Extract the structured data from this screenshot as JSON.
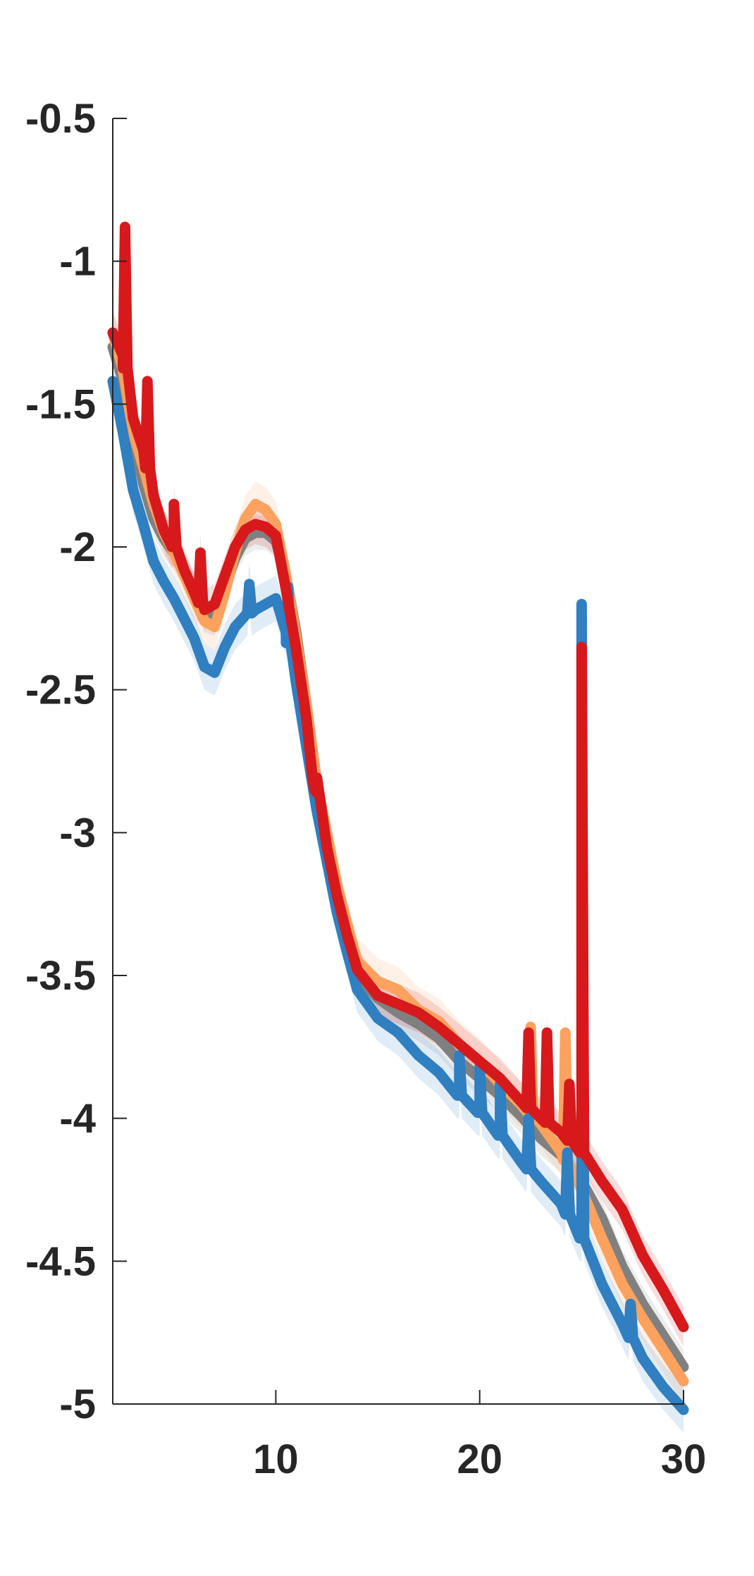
{
  "chart_data": {
    "type": "line",
    "title": "",
    "xlabel": "",
    "ylabel": "",
    "xlim": [
      2,
      30
    ],
    "ylim": [
      -5,
      -0.5
    ],
    "grid": false,
    "legend": "none",
    "x_ticks": [
      10,
      20,
      30
    ],
    "x_tick_labels": [
      "10",
      "20",
      "30"
    ],
    "y_ticks": [
      -0.5,
      -1,
      -1.5,
      -2,
      -2.5,
      -3,
      -3.5,
      -4,
      -4.5,
      -5
    ],
    "y_tick_labels": [
      "-0.5",
      "-1",
      "-1.5",
      "-2",
      "-2.5",
      "-3",
      "-3.5",
      "-4",
      "-4.5",
      "-5"
    ],
    "series": [
      {
        "color": "#808080",
        "band": 0.06,
        "points": [
          [
            2,
            -1.3
          ],
          [
            2.5,
            -1.42
          ],
          [
            3,
            -1.62
          ],
          [
            3.5,
            -1.78
          ],
          [
            4,
            -1.9
          ],
          [
            4.5,
            -1.97
          ],
          [
            5,
            -2.02
          ],
          [
            5.5,
            -2.08
          ],
          [
            6,
            -2.16
          ],
          [
            6.5,
            -2.24
          ],
          [
            7,
            -2.25
          ],
          [
            7.5,
            -2.14
          ],
          [
            8,
            -2.04
          ],
          [
            8.5,
            -1.97
          ],
          [
            9,
            -1.95
          ],
          [
            9.5,
            -1.95
          ],
          [
            10,
            -1.98
          ],
          [
            10.5,
            -2.1
          ],
          [
            11,
            -2.3
          ],
          [
            11.5,
            -2.55
          ],
          [
            12,
            -2.82
          ],
          [
            12.5,
            -3.05
          ],
          [
            13,
            -3.22
          ],
          [
            13.5,
            -3.38
          ],
          [
            14,
            -3.5
          ],
          [
            15,
            -3.58
          ],
          [
            16,
            -3.63
          ],
          [
            17,
            -3.67
          ],
          [
            18,
            -3.72
          ],
          [
            19,
            -3.8
          ],
          [
            20,
            -3.86
          ],
          [
            21,
            -3.92
          ],
          [
            22,
            -3.99
          ],
          [
            23,
            -4.07
          ],
          [
            24,
            -4.13
          ],
          [
            25,
            -4.22
          ],
          [
            26,
            -4.35
          ],
          [
            27,
            -4.52
          ],
          [
            28,
            -4.65
          ],
          [
            29,
            -4.76
          ],
          [
            30,
            -4.87
          ]
        ]
      },
      {
        "color": "#fca15e",
        "band": 0.08,
        "points": [
          [
            2,
            -1.25
          ],
          [
            2.5,
            -1.38
          ],
          [
            3,
            -1.6
          ],
          [
            3.5,
            -1.72
          ],
          [
            4,
            -1.85
          ],
          [
            4.5,
            -1.95
          ],
          [
            5,
            -2.02
          ],
          [
            5.5,
            -2.1
          ],
          [
            6,
            -2.18
          ],
          [
            6.5,
            -2.26
          ],
          [
            7,
            -2.28
          ],
          [
            7.5,
            -2.16
          ],
          [
            8,
            -2.02
          ],
          [
            8.5,
            -1.9
          ],
          [
            9,
            -1.85
          ],
          [
            9.5,
            -1.87
          ],
          [
            10,
            -1.92
          ],
          [
            10.5,
            -2.1
          ],
          [
            11,
            -2.32
          ],
          [
            11.5,
            -2.55
          ],
          [
            12,
            -2.82
          ],
          [
            12.5,
            -3.0
          ],
          [
            13,
            -3.18
          ],
          [
            13.5,
            -3.32
          ],
          [
            14,
            -3.45
          ],
          [
            15,
            -3.52
          ],
          [
            16,
            -3.55
          ],
          [
            17,
            -3.62
          ],
          [
            18,
            -3.66
          ],
          [
            19,
            -3.74
          ],
          [
            20,
            -3.8
          ],
          [
            21,
            -3.88
          ],
          [
            22,
            -3.95
          ],
          [
            23,
            -4.02
          ],
          [
            24,
            -4.12
          ],
          [
            25,
            -4.25
          ],
          [
            26,
            -4.42
          ],
          [
            27,
            -4.58
          ],
          [
            28,
            -4.7
          ],
          [
            29,
            -4.81
          ],
          [
            30,
            -4.92
          ]
        ],
        "spikes": [
          [
            22.5,
            -3.68
          ],
          [
            24.2,
            -3.7
          ]
        ]
      },
      {
        "color": "#2f7fc1",
        "band": 0.08,
        "points": [
          [
            2,
            -1.42
          ],
          [
            2.5,
            -1.6
          ],
          [
            3,
            -1.8
          ],
          [
            3.5,
            -1.92
          ],
          [
            4,
            -2.05
          ],
          [
            4.5,
            -2.12
          ],
          [
            5,
            -2.18
          ],
          [
            5.5,
            -2.25
          ],
          [
            6,
            -2.32
          ],
          [
            6.5,
            -2.42
          ],
          [
            7,
            -2.44
          ],
          [
            7.5,
            -2.35
          ],
          [
            8,
            -2.28
          ],
          [
            8.5,
            -2.24
          ],
          [
            9,
            -2.22
          ],
          [
            9.5,
            -2.2
          ],
          [
            10,
            -2.18
          ],
          [
            10.5,
            -2.3
          ],
          [
            11,
            -2.48
          ],
          [
            11.5,
            -2.7
          ],
          [
            12,
            -2.92
          ],
          [
            12.5,
            -3.1
          ],
          [
            13,
            -3.28
          ],
          [
            13.5,
            -3.42
          ],
          [
            14,
            -3.55
          ],
          [
            15,
            -3.65
          ],
          [
            16,
            -3.7
          ],
          [
            17,
            -3.78
          ],
          [
            18,
            -3.84
          ],
          [
            19,
            -3.92
          ],
          [
            20,
            -3.98
          ],
          [
            21,
            -4.06
          ],
          [
            22,
            -4.15
          ],
          [
            23,
            -4.22
          ],
          [
            24,
            -4.3
          ],
          [
            25,
            -4.42
          ],
          [
            26,
            -4.58
          ],
          [
            27,
            -4.72
          ],
          [
            28,
            -4.84
          ],
          [
            29,
            -4.94
          ],
          [
            30,
            -5.02
          ]
        ],
        "spikes": [
          [
            8.7,
            -2.13
          ],
          [
            10.6,
            -2.14
          ],
          [
            19.0,
            -3.78
          ],
          [
            20.0,
            -3.82
          ],
          [
            21.0,
            -3.88
          ],
          [
            22.4,
            -4.0
          ],
          [
            24.3,
            -4.12
          ],
          [
            25.0,
            -2.2
          ],
          [
            27.4,
            -4.65
          ]
        ]
      },
      {
        "color": "#d7191c",
        "band": 0.07,
        "points": [
          [
            2,
            -1.25
          ],
          [
            2.5,
            -1.33
          ],
          [
            3,
            -1.55
          ],
          [
            3.5,
            -1.66
          ],
          [
            4,
            -1.82
          ],
          [
            4.5,
            -1.94
          ],
          [
            5,
            -2.0
          ],
          [
            5.5,
            -2.08
          ],
          [
            6,
            -2.16
          ],
          [
            6.5,
            -2.22
          ],
          [
            7,
            -2.2
          ],
          [
            7.5,
            -2.1
          ],
          [
            8,
            -2.0
          ],
          [
            8.5,
            -1.94
          ],
          [
            9,
            -1.92
          ],
          [
            9.5,
            -1.93
          ],
          [
            10,
            -1.96
          ],
          [
            10.5,
            -2.15
          ],
          [
            11,
            -2.36
          ],
          [
            11.5,
            -2.6
          ],
          [
            12,
            -2.86
          ],
          [
            12.5,
            -3.05
          ],
          [
            13,
            -3.22
          ],
          [
            13.5,
            -3.36
          ],
          [
            14,
            -3.48
          ],
          [
            15,
            -3.57
          ],
          [
            16,
            -3.6
          ],
          [
            17,
            -3.63
          ],
          [
            18,
            -3.68
          ],
          [
            19,
            -3.74
          ],
          [
            20,
            -3.8
          ],
          [
            21,
            -3.86
          ],
          [
            22,
            -3.94
          ],
          [
            23,
            -4.0
          ],
          [
            24,
            -4.05
          ],
          [
            25,
            -4.12
          ],
          [
            26,
            -4.22
          ],
          [
            27,
            -4.32
          ],
          [
            28,
            -4.48
          ],
          [
            29,
            -4.6
          ],
          [
            30,
            -4.73
          ]
        ],
        "spikes": [
          [
            2.6,
            -0.88
          ],
          [
            3.7,
            -1.42
          ],
          [
            5.0,
            -1.85
          ],
          [
            6.3,
            -2.02
          ],
          [
            11.9,
            -2.85
          ],
          [
            22.4,
            -3.7
          ],
          [
            23.3,
            -3.7
          ],
          [
            24.4,
            -3.88
          ],
          [
            25.0,
            -2.35
          ]
        ]
      }
    ]
  }
}
